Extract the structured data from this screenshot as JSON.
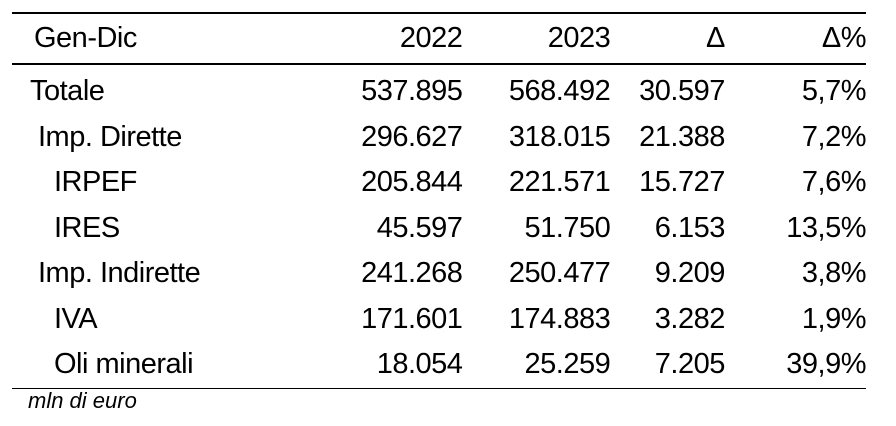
{
  "table": {
    "headers": [
      "Gen-Dic",
      "2022",
      "2023",
      "Δ",
      "Δ%"
    ],
    "rows": [
      {
        "label": "Totale",
        "indent": 0,
        "v2022": "537.895",
        "v2023": "568.492",
        "delta": "30.597",
        "delta_pct": "5,7%"
      },
      {
        "label": "Imp. Dirette",
        "indent": 1,
        "v2022": "296.627",
        "v2023": "318.015",
        "delta": "21.388",
        "delta_pct": "7,2%"
      },
      {
        "label": "IRPEF",
        "indent": 2,
        "v2022": "205.844",
        "v2023": "221.571",
        "delta": "15.727",
        "delta_pct": "7,6%"
      },
      {
        "label": "IRES",
        "indent": 2,
        "v2022": "45.597",
        "v2023": "51.750",
        "delta": "6.153",
        "delta_pct": "13,5%"
      },
      {
        "label": "Imp. Indirette",
        "indent": 1,
        "v2022": "241.268",
        "v2023": "250.477",
        "delta": "9.209",
        "delta_pct": "3,8%"
      },
      {
        "label": "IVA",
        "indent": 2,
        "v2022": "171.601",
        "v2023": "174.883",
        "delta": "3.282",
        "delta_pct": "1,9%"
      },
      {
        "label": "Oli minerali",
        "indent": 2,
        "v2022": "18.054",
        "v2023": "25.259",
        "delta": "7.205",
        "delta_pct": "39,9%"
      }
    ]
  },
  "note": "mln di euro"
}
